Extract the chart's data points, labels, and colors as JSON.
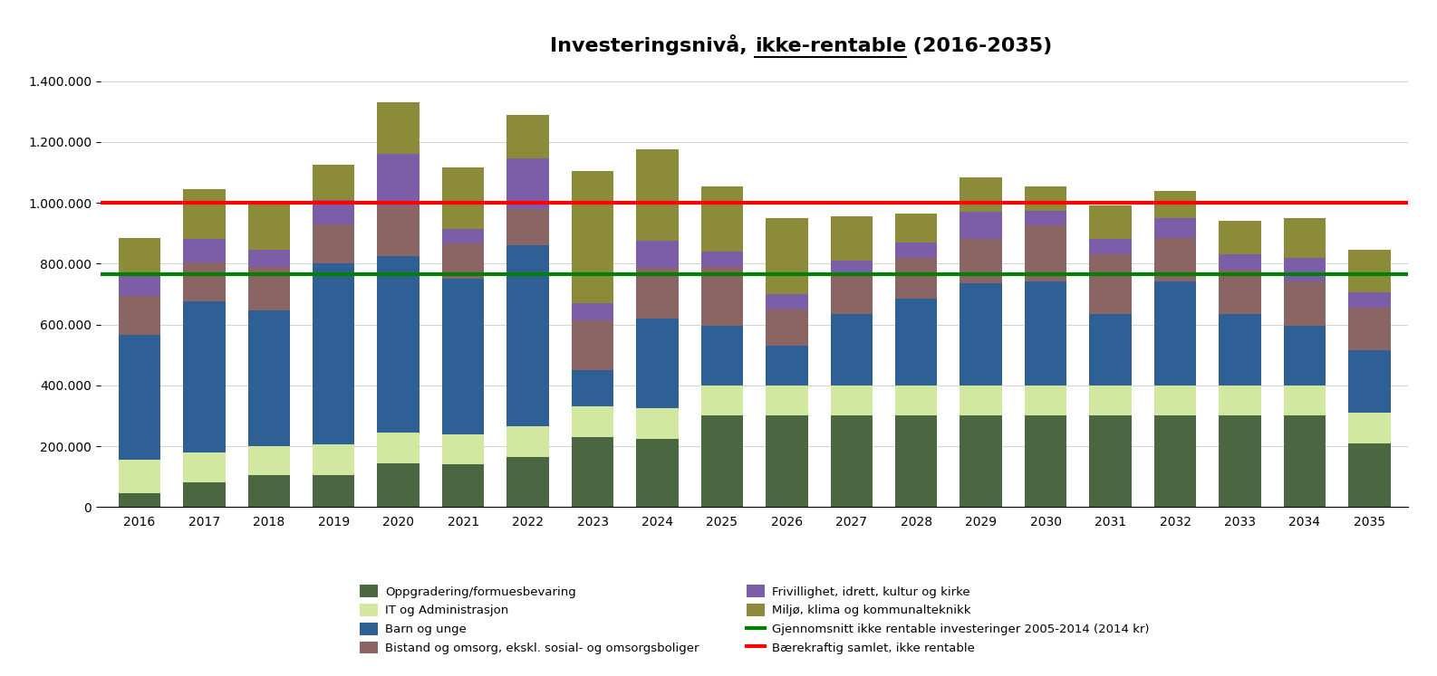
{
  "years": [
    2016,
    2017,
    2018,
    2019,
    2020,
    2021,
    2022,
    2023,
    2024,
    2025,
    2026,
    2027,
    2028,
    2029,
    2030,
    2031,
    2032,
    2033,
    2034,
    2035
  ],
  "stack_order": [
    "Oppgradering/formuesbevaring",
    "IT og Administrasjon",
    "Barn og unge",
    "Bistand og omsorg, ekskl. sosial- og omsorgsboliger",
    "Frivillighet, idrett, kultur og kirke",
    "Miljø, klima og kommunalteknikk"
  ],
  "series": {
    "Oppgradering/formuesbevaring": [
      45000,
      80000,
      105000,
      105000,
      145000,
      140000,
      165000,
      230000,
      225000,
      300000,
      300000,
      300000,
      300000,
      300000,
      300000,
      300000,
      300000,
      300000,
      300000,
      210000
    ],
    "IT og Administrasjon": [
      110000,
      100000,
      95000,
      100000,
      100000,
      100000,
      100000,
      100000,
      100000,
      100000,
      100000,
      100000,
      100000,
      100000,
      100000,
      100000,
      100000,
      100000,
      100000,
      100000
    ],
    "Barn og unge": [
      410000,
      495000,
      445000,
      595000,
      580000,
      510000,
      595000,
      120000,
      295000,
      195000,
      130000,
      235000,
      285000,
      335000,
      340000,
      235000,
      340000,
      235000,
      195000,
      205000
    ],
    "Bistand og omsorg, ekskl. sosial- og omsorgsboliger": [
      130000,
      130000,
      145000,
      130000,
      165000,
      115000,
      120000,
      165000,
      165000,
      195000,
      120000,
      125000,
      135000,
      145000,
      185000,
      195000,
      145000,
      145000,
      145000,
      140000
    ],
    "Frivillighet, idrett, kultur og kirke": [
      70000,
      75000,
      55000,
      80000,
      170000,
      50000,
      165000,
      55000,
      90000,
      50000,
      50000,
      50000,
      50000,
      90000,
      50000,
      50000,
      65000,
      50000,
      80000,
      50000
    ],
    "Miljø, klima og kommunalteknikk": [
      120000,
      165000,
      155000,
      115000,
      170000,
      200000,
      145000,
      435000,
      300000,
      215000,
      250000,
      145000,
      95000,
      115000,
      80000,
      110000,
      90000,
      110000,
      130000,
      140000
    ]
  },
  "colors": {
    "Oppgradering/formuesbevaring": "#4a6741",
    "IT og Administrasjon": "#d2e8a0",
    "Barn og unge": "#2e6096",
    "Bistand og omsorg, ekskl. sosial- og omsorgsboliger": "#8b6464",
    "Frivillighet, idrett, kultur og kirke": "#7b5ea7",
    "Miljø, klima og kommunalteknikk": "#8b8b3a"
  },
  "green_line_value": 765000,
  "red_line_value": 1000000,
  "green_line_label": "Gjennomsnitt ikke rentable investeringer 2005-2014 (2014 kr)",
  "red_line_label": "Bærekraftig samlet, ikke rentable",
  "bar_width": 0.65,
  "ylim": [
    0,
    1400000
  ],
  "yticks": [
    0,
    200000,
    400000,
    600000,
    800000,
    1000000,
    1200000,
    1400000
  ],
  "title_part1": "Investeringsnivå, ",
  "title_part2": "ikke-rentable",
  "title_part3": " (2016-2035)",
  "figsize": [
    15.86,
    7.47
  ],
  "dpi": 100
}
